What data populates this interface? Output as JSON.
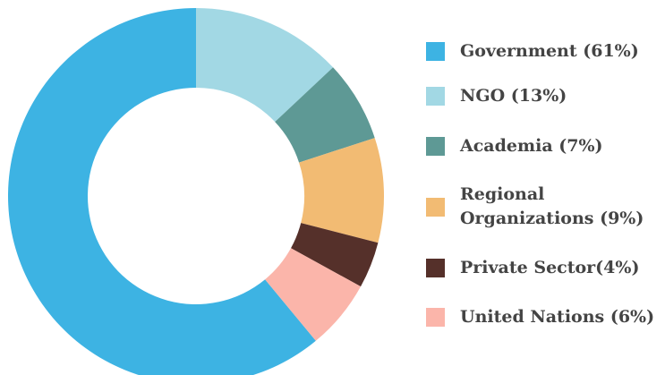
{
  "chart_data": {
    "type": "donut",
    "categories": [
      "Government (61%)",
      "NGO (13%)",
      "Academia (7%)",
      "Regional Organizations (9%)",
      "Private Sector(4%)",
      "United Nations (6%)"
    ],
    "values": [
      61,
      13,
      7,
      9,
      4,
      6
    ],
    "colors": [
      "#3db3e3",
      "#a2d8e4",
      "#5e9995",
      "#f2bb73",
      "#55302a",
      "#fbb5aa"
    ],
    "legend": "right"
  }
}
